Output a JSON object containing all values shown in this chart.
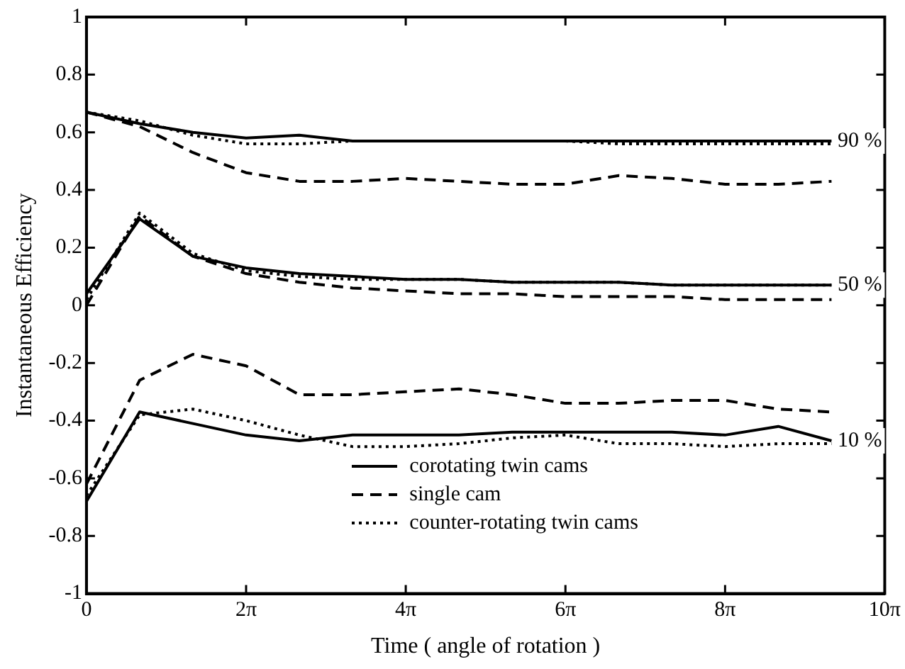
{
  "chart_data": {
    "type": "line",
    "xlabel": "Time ( angle of rotation )",
    "ylabel": "Instantaneous Efficiency",
    "x": [
      0,
      2.094,
      4.189,
      6.283,
      8.378,
      10.472,
      12.566,
      14.661,
      16.755,
      18.85,
      20.944,
      23.038,
      25.133,
      27.227,
      29.322
    ],
    "xlim": [
      0,
      31.416
    ],
    "xticks": [
      0,
      {
        "value": 6.283,
        "label": "2π"
      },
      {
        "value": 12.566,
        "label": "4π"
      },
      {
        "value": 18.85,
        "label": "6π"
      },
      {
        "value": 25.133,
        "label": "8π"
      },
      {
        "value": 31.416,
        "label": "10π"
      }
    ],
    "ylim": [
      -1,
      1
    ],
    "yticks": [
      -1,
      -0.8,
      -0.6,
      -0.4,
      -0.2,
      0,
      0.2,
      0.4,
      0.6,
      0.8,
      1
    ],
    "grid": false,
    "legend": "bottom",
    "marker": "none",
    "series": [
      {
        "name": "corotating twin cams",
        "color": "#000000",
        "line_style": "solid",
        "values": [
          -0.68,
          -0.37,
          -0.41,
          -0.45,
          -0.47,
          -0.45,
          -0.45,
          -0.45,
          -0.44,
          -0.44,
          -0.44,
          -0.44,
          -0.45,
          -0.42,
          -0.47
        ]
      },
      {
        "name": "single cam",
        "color": "#000000",
        "line_style": "dashed",
        "values": [
          -0.62,
          -0.26,
          -0.17,
          -0.21,
          -0.31,
          -0.31,
          -0.3,
          -0.29,
          -0.31,
          -0.34,
          -0.34,
          -0.33,
          -0.33,
          -0.36,
          -0.37
        ]
      },
      {
        "name": "counter-rotating twin cams",
        "color": "#000000",
        "line_style": "dotted",
        "values": [
          -0.66,
          -0.38,
          -0.36,
          -0.4,
          -0.45,
          -0.49,
          -0.49,
          -0.48,
          -0.46,
          -0.45,
          -0.48,
          -0.48,
          -0.49,
          -0.48,
          -0.48
        ]
      },
      {
        "color": "#000000",
        "line_style": "solid",
        "values": [
          0.04,
          0.3,
          0.17,
          0.13,
          0.11,
          0.1,
          0.09,
          0.09,
          0.08,
          0.08,
          0.08,
          0.07,
          0.07,
          0.07,
          0.07
        ]
      },
      {
        "color": "#000000",
        "line_style": "dashed",
        "values": [
          0,
          0.31,
          0.17,
          0.11,
          0.08,
          0.06,
          0.05,
          0.04,
          0.04,
          0.03,
          0.03,
          0.03,
          0.02,
          0.02,
          0.02
        ]
      },
      {
        "color": "#000000",
        "line_style": "dotted",
        "values": [
          0.02,
          0.32,
          0.18,
          0.12,
          0.1,
          0.09,
          0.09,
          0.09,
          0.08,
          0.08,
          0.08,
          0.07,
          0.07,
          0.07,
          0.07
        ]
      },
      {
        "color": "#000000",
        "line_style": "solid",
        "values": [
          0.67,
          0.63,
          0.6,
          0.58,
          0.59,
          0.57,
          0.57,
          0.57,
          0.57,
          0.57,
          0.57,
          0.57,
          0.57,
          0.57,
          0.57
        ]
      },
      {
        "color": "#000000",
        "line_style": "dashed",
        "values": [
          0.67,
          0.62,
          0.53,
          0.46,
          0.43,
          0.43,
          0.44,
          0.43,
          0.42,
          0.42,
          0.45,
          0.44,
          0.42,
          0.42,
          0.43
        ]
      },
      {
        "color": "#000000",
        "line_style": "dotted",
        "values": [
          0.67,
          0.64,
          0.59,
          0.56,
          0.56,
          0.57,
          0.57,
          0.57,
          0.57,
          0.57,
          0.56,
          0.56,
          0.56,
          0.56,
          0.56
        ]
      }
    ],
    "annotations": [
      {
        "text": "90 %",
        "y": 0.57
      },
      {
        "text": "50 %",
        "y": 0.07
      },
      {
        "text": "10 %",
        "y": -0.47
      }
    ]
  }
}
